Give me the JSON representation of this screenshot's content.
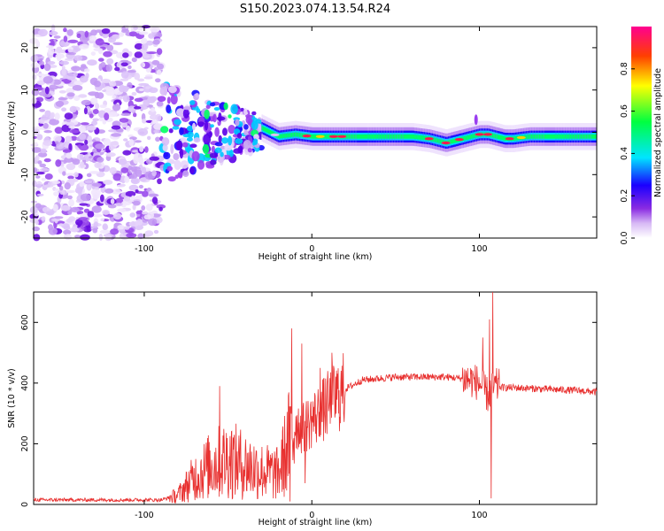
{
  "title": "S150.2023.074.13.54.R24",
  "chart_data": [
    {
      "type": "heatmap",
      "xlabel": "Height of straight line (km)",
      "ylabel": "Frequency (Hz)",
      "xlim": [
        -166,
        170
      ],
      "ylim": [
        -25,
        25
      ],
      "xticks": [
        -100,
        0,
        100
      ],
      "xtick_labels": [
        "-100",
        "0",
        "100"
      ],
      "yticks": [
        -20,
        -10,
        0,
        10,
        20
      ],
      "ytick_labels": [
        "-20",
        "-10",
        "0",
        "10",
        "20"
      ],
      "colorbar": {
        "label": "Normalized spectral amplitude",
        "range": [
          0,
          1
        ],
        "ticks": [
          0,
          0.2,
          0.4,
          0.6,
          0.8
        ],
        "tick_labels": [
          "0.0",
          "0.2",
          "0.4",
          "0.6",
          "0.8"
        ],
        "colormap": [
          "#ffffff",
          "#8a2be2",
          "#1a00ff",
          "#00e5ff",
          "#00ff40",
          "#ffff00",
          "#ff4000",
          "#ff0090"
        ]
      },
      "ridge": {
        "description_free": true,
        "x": [
          -30,
          -20,
          -10,
          0,
          10,
          20,
          40,
          60,
          70,
          75,
          80,
          85,
          90,
          95,
          100,
          105,
          110,
          115,
          120,
          130,
          150,
          170
        ],
        "freq": [
          1,
          -1,
          -0.5,
          -1,
          -1,
          -1,
          -1,
          -1,
          -1.5,
          -2,
          -2.5,
          -2,
          -1.5,
          -1,
          -0.5,
          -0.5,
          -1,
          -1.5,
          -1.5,
          -1,
          -1,
          -1
        ]
      },
      "noise_region_x": [
        -166,
        -90
      ],
      "grid": false
    },
    {
      "type": "line",
      "xlabel": "Height of straight line (km)",
      "ylabel": "SNR (10 * v/v)",
      "xlim": [
        -166,
        170
      ],
      "ylim": [
        0,
        700
      ],
      "xticks": [
        -100,
        0,
        100
      ],
      "xtick_labels": [
        "-100",
        "0",
        "100"
      ],
      "yticks": [
        0,
        200,
        400,
        600
      ],
      "ytick_labels": [
        "0",
        "200",
        "400",
        "600"
      ],
      "color": "#e8302f",
      "envelope": {
        "x": [
          -166,
          -90,
          -80,
          -70,
          -60,
          -50,
          -40,
          -30,
          -20,
          -15,
          -10,
          -5,
          0,
          5,
          10,
          20,
          30,
          40,
          50,
          60,
          70,
          80,
          90,
          95,
          100,
          105,
          108,
          110,
          115,
          120,
          140,
          160,
          170
        ],
        "y": [
          15,
          15,
          30,
          90,
          130,
          150,
          130,
          110,
          100,
          180,
          270,
          250,
          280,
          300,
          330,
          380,
          410,
          415,
          420,
          420,
          420,
          420,
          415,
          410,
          400,
          360,
          380,
          390,
          385,
          385,
          380,
          375,
          370
        ]
      },
      "spikes": [
        {
          "x": -55,
          "y": 390
        },
        {
          "x": -48,
          "y": 240
        },
        {
          "x": -12,
          "y": 580
        },
        {
          "x": -13,
          "y": 10
        },
        {
          "x": -6,
          "y": 530
        },
        {
          "x": -4,
          "y": 70
        },
        {
          "x": 5,
          "y": 450
        },
        {
          "x": 12,
          "y": 500
        },
        {
          "x": 102,
          "y": 550
        },
        {
          "x": 106,
          "y": 610
        },
        {
          "x": 107,
          "y": 20
        },
        {
          "x": 108,
          "y": 700
        }
      ],
      "grid": false
    }
  ]
}
